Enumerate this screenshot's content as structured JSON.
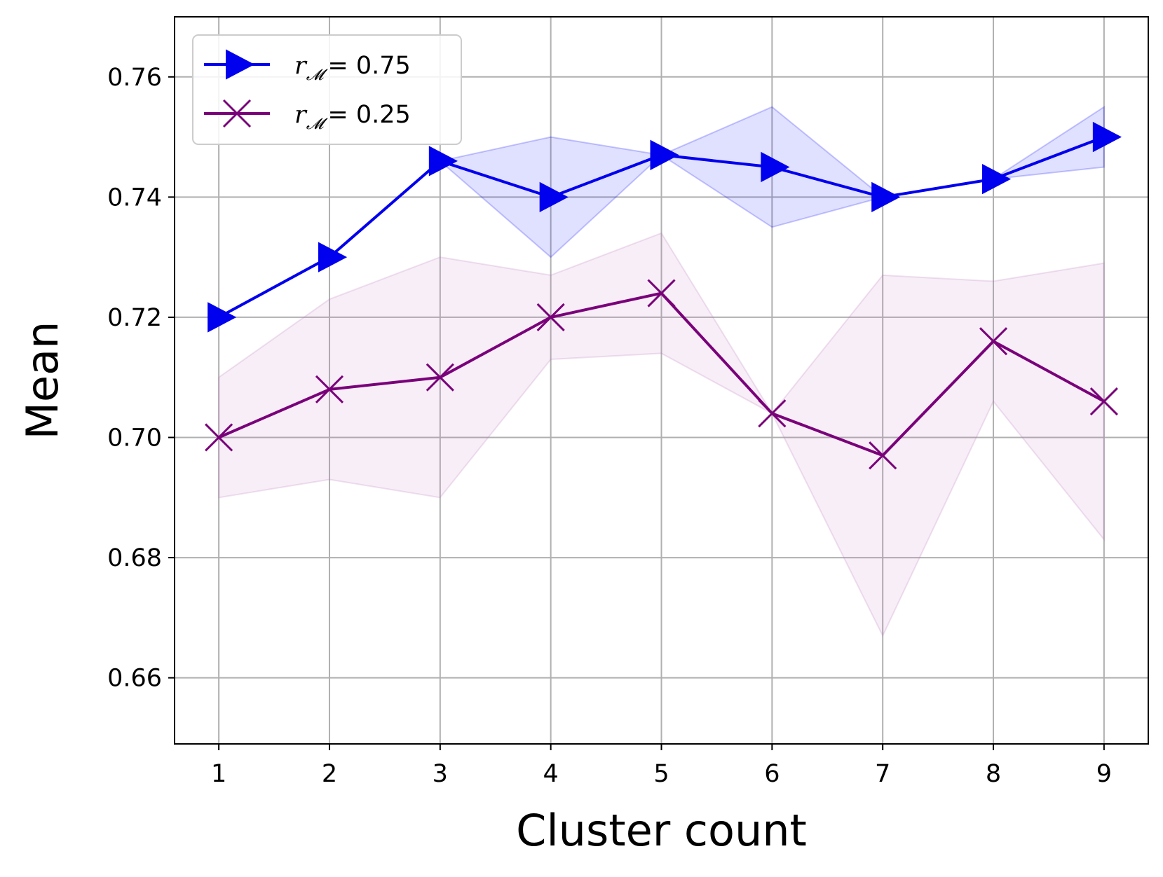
{
  "chart_data": {
    "type": "line",
    "xlabel": "Cluster count",
    "ylabel": "Mean",
    "x": [
      1,
      2,
      3,
      4,
      5,
      6,
      7,
      8,
      9
    ],
    "xlim": [
      0.6,
      9.4
    ],
    "ylim": [
      0.649,
      0.77
    ],
    "xticks": [
      "1",
      "2",
      "3",
      "4",
      "5",
      "6",
      "7",
      "8",
      "9"
    ],
    "yticks": [
      "0.66",
      "0.68",
      "0.70",
      "0.72",
      "0.74",
      "0.76"
    ],
    "grid": true,
    "legend_position": "top-left",
    "series": [
      {
        "name": "r_M = 0.75",
        "legend_var": "r",
        "legend_sub": "𝓜",
        "legend_value": "= 0.75",
        "color": "#0000ee",
        "band_color": "#0000ff",
        "marker": "triangle-right",
        "values": [
          0.72,
          0.73,
          0.746,
          0.74,
          0.747,
          0.745,
          0.74,
          0.743,
          0.75
        ],
        "lower": [
          0.72,
          0.73,
          0.746,
          0.73,
          0.747,
          0.735,
          0.74,
          0.743,
          0.745
        ],
        "upper": [
          0.72,
          0.73,
          0.746,
          0.75,
          0.747,
          0.755,
          0.74,
          0.743,
          0.755
        ]
      },
      {
        "name": "r_M = 0.25",
        "legend_var": "r",
        "legend_sub": "𝓜",
        "legend_value": "= 0.25",
        "color": "#7a007a",
        "band_color": "#bb77bb",
        "marker": "x",
        "values": [
          0.7,
          0.708,
          0.71,
          0.72,
          0.724,
          0.704,
          0.697,
          0.716,
          0.706
        ],
        "lower": [
          0.69,
          0.693,
          0.69,
          0.713,
          0.714,
          0.704,
          0.667,
          0.706,
          0.683
        ],
        "upper": [
          0.71,
          0.723,
          0.73,
          0.727,
          0.734,
          0.704,
          0.727,
          0.726,
          0.729
        ]
      }
    ]
  }
}
